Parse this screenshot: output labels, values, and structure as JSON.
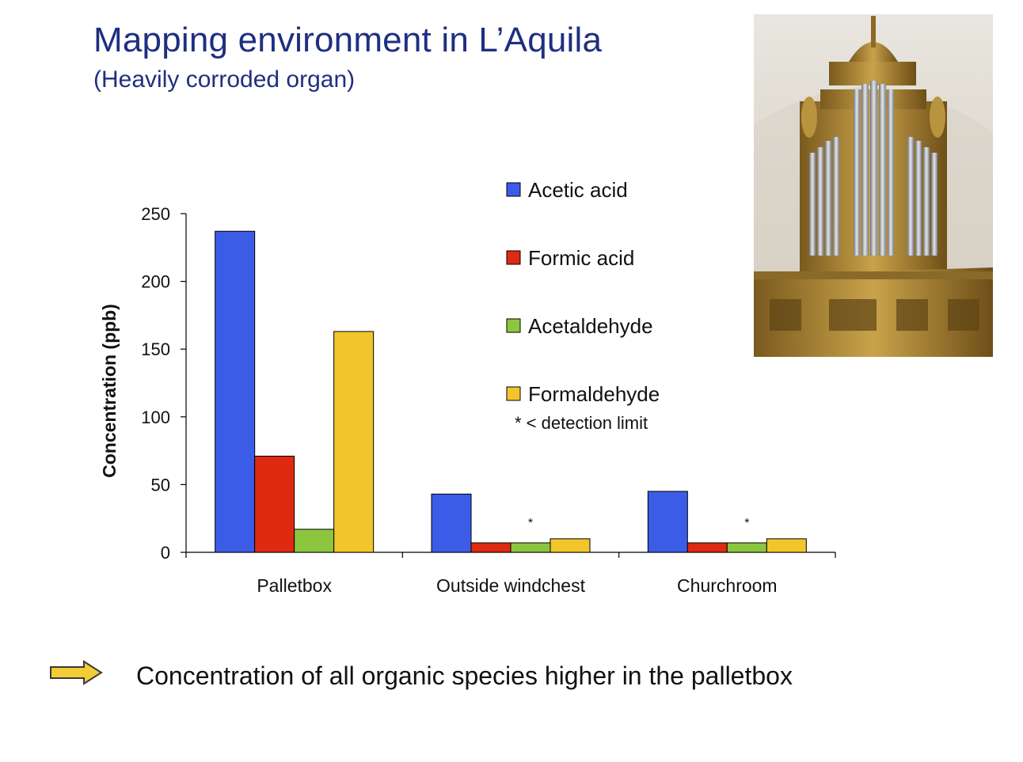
{
  "slide": {
    "title": "Mapping environment in L’Aquila",
    "subtitle": "(Heavily corroded organ)",
    "conclusion": "Concentration of all organic species higher in the palletbox"
  },
  "colors": {
    "title": "#1f2f80",
    "arrow_fill": "#f2cd35",
    "arrow_stroke": "#3a3a3a"
  },
  "photo": {
    "subject": "church-pipe-organ"
  },
  "chart_data": {
    "type": "bar",
    "title": "",
    "xlabel": "",
    "ylabel": "Concentration (ppb)",
    "categories": [
      "Palletbox",
      "Outside windchest",
      "Churchroom"
    ],
    "ylim": [
      0,
      250
    ],
    "yticks": [
      0,
      50,
      100,
      150,
      200,
      250
    ],
    "series": [
      {
        "name": "Acetic acid",
        "color": "#3b5ce6",
        "values": [
          237,
          43,
          45
        ]
      },
      {
        "name": "Formic acid",
        "color": "#dd2a10",
        "values": [
          71,
          7,
          7
        ]
      },
      {
        "name": "Acetaldehyde",
        "color": "#8cc63f",
        "values": [
          17,
          7,
          7
        ]
      },
      {
        "name": "Formaldehyde",
        "color": "#f2c52c",
        "values": [
          163,
          10,
          10
        ]
      }
    ],
    "annotations": [
      {
        "text": "*",
        "category": "Outside windchest"
      },
      {
        "text": "*",
        "category": "Churchroom"
      }
    ],
    "legend_note": "* < detection limit",
    "legend_position": "top-right",
    "grid": false
  }
}
